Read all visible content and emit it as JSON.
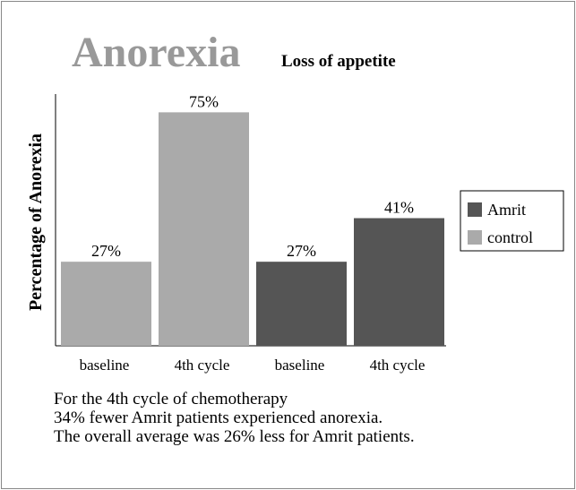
{
  "chart_data": {
    "type": "bar",
    "title": "Anorexia",
    "subtitle": "Loss of appetite",
    "y_label": "Percentage of Anorexia",
    "categories": [
      "baseline",
      "4th cycle",
      "baseline",
      "4th cycle"
    ],
    "series": [
      {
        "name": "Amrit",
        "color": "#555555",
        "values": [
          null,
          null,
          27,
          41
        ],
        "value_labels": [
          null,
          null,
          "27%",
          "41%"
        ]
      },
      {
        "name": "control",
        "color": "#aaaaaa",
        "values": [
          27,
          75,
          null,
          null
        ],
        "value_labels": [
          "27%",
          "75%",
          null,
          null
        ]
      }
    ],
    "ylim": [
      0,
      80
    ],
    "grid": false,
    "legend": "right",
    "annotations": [
      "For the 4th cycle of chemotherapy",
      "34% fewer Amrit patients experienced anorexia.",
      "The overall average was 26% less for Amrit patients."
    ]
  }
}
